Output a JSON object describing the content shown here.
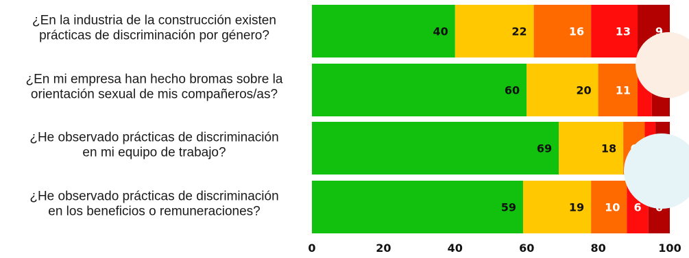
{
  "chart_data": {
    "type": "bar",
    "orientation": "horizontal",
    "stacked": true,
    "categories": [
      [
        "¿En la industria de la construcción existen",
        "prácticas de discriminación por género?"
      ],
      [
        "¿En mi empresa han hecho bromas sobre la",
        "orientación sexual de mis compañeros/as?"
      ],
      [
        "¿He observado prácticas de discriminación",
        "en mi equipo de trabajo?"
      ],
      [
        "¿He observado prácticas de discriminación",
        "en los beneficios o remuneraciones?"
      ]
    ],
    "series": [
      {
        "values": [
          40,
          60,
          69,
          59
        ],
        "color": "#12c10e",
        "label_color": "#111111",
        "labels": [
          "40",
          "60",
          "69",
          "59"
        ]
      },
      {
        "values": [
          22,
          20,
          18,
          19
        ],
        "color": "#ffc800",
        "label_color": "#111111",
        "labels": [
          "22",
          "20",
          "18",
          "19"
        ]
      },
      {
        "values": [
          16,
          11,
          6,
          10
        ],
        "color": "#ff6a00",
        "label_color": "#ffffff",
        "labels": [
          "16",
          "11",
          "6",
          "10"
        ]
      },
      {
        "values": [
          13,
          4,
          3,
          6
        ],
        "color": "#ff0d0d",
        "label_color": "#ffffff",
        "labels": [
          "13",
          "",
          "",
          "6"
        ]
      },
      {
        "values": [
          9,
          5,
          4,
          6
        ],
        "color": "#b30000",
        "label_color": "#ffffff",
        "labels": [
          "9",
          "",
          "",
          "6"
        ]
      }
    ],
    "xlim": [
      0,
      100
    ],
    "xticks": [
      "0",
      "20",
      "40",
      "60",
      "80",
      "100"
    ],
    "grid": false,
    "legend": "none",
    "title": "",
    "xlabel": "",
    "ylabel": ""
  }
}
